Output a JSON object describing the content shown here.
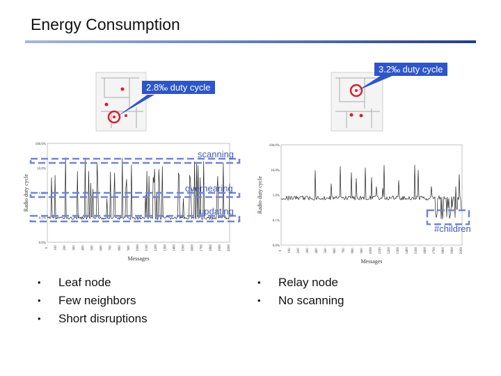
{
  "slide": {
    "title": "Energy Consumption"
  },
  "callouts": {
    "left": "2.8‰ duty cycle",
    "right": "3.2‰ duty cycle"
  },
  "labels": {
    "scanning": "scanning",
    "overhearing": "overhearing",
    "updating": "updating",
    "children": "#children"
  },
  "bullets_left": [
    "Leaf node",
    "Few neighbors",
    "Short disruptions"
  ],
  "bullets_right": [
    "Relay node",
    "No scanning"
  ],
  "chart_data": [
    {
      "type": "line",
      "xlabel": "Messages",
      "ylabel": "Radio duty cycle",
      "y_ticks": [
        "100.0%",
        "10.0%",
        "1.0%",
        "0.1%",
        "0.0%"
      ],
      "x_ticks": [
        "0",
        "100",
        "200",
        "300",
        "400",
        "500",
        "600",
        "700",
        "800",
        "900",
        "1000",
        "1100",
        "1200",
        "1300",
        "1400",
        "1500",
        "1600",
        "1700",
        "1800",
        "1900",
        "2000"
      ]
    },
    {
      "type": "line",
      "xlabel": "Messages",
      "ylabel": "Radio duty cycle",
      "y_ticks": [
        "100.0%",
        "10.0%",
        "1.0%",
        "0.1%",
        "0.0%"
      ],
      "x_ticks": [
        "0",
        "100",
        "200",
        "300",
        "400",
        "500",
        "600",
        "700",
        "800",
        "900",
        "1000",
        "1100",
        "1200",
        "1300",
        "1400",
        "1500",
        "1600",
        "1700",
        "1800",
        "1900",
        "2000"
      ]
    }
  ],
  "colors": {
    "accent": "#2e55c9",
    "dash": "#6f86cf",
    "marker": "#d9202a"
  }
}
